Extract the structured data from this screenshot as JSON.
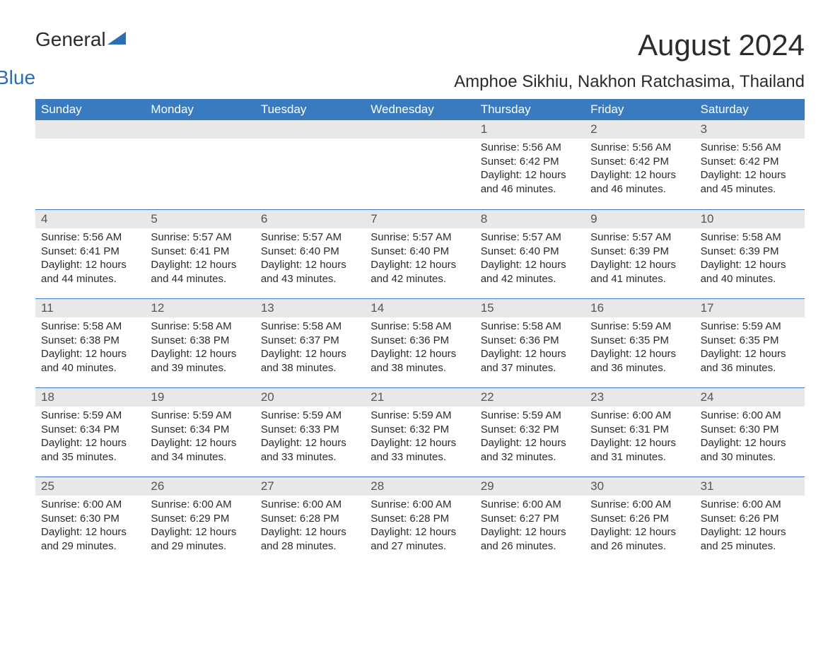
{
  "logo": {
    "text1": "General",
    "text2": "Blue"
  },
  "title": "August 2024",
  "location": "Amphoe Sikhiu, Nakhon Ratchasima, Thailand",
  "colors": {
    "header_bg": "#3a7bbf",
    "header_text": "#ffffff",
    "daynum_bg": "#e8e8e8",
    "body_text": "#2b2b2b",
    "accent": "#2f6db3"
  },
  "day_headers": [
    "Sunday",
    "Monday",
    "Tuesday",
    "Wednesday",
    "Thursday",
    "Friday",
    "Saturday"
  ],
  "weeks": [
    [
      null,
      null,
      null,
      null,
      {
        "n": "1",
        "sr": "5:56 AM",
        "ss": "6:42 PM",
        "dl": "12 hours and 46 minutes."
      },
      {
        "n": "2",
        "sr": "5:56 AM",
        "ss": "6:42 PM",
        "dl": "12 hours and 46 minutes."
      },
      {
        "n": "3",
        "sr": "5:56 AM",
        "ss": "6:42 PM",
        "dl": "12 hours and 45 minutes."
      }
    ],
    [
      {
        "n": "4",
        "sr": "5:56 AM",
        "ss": "6:41 PM",
        "dl": "12 hours and 44 minutes."
      },
      {
        "n": "5",
        "sr": "5:57 AM",
        "ss": "6:41 PM",
        "dl": "12 hours and 44 minutes."
      },
      {
        "n": "6",
        "sr": "5:57 AM",
        "ss": "6:40 PM",
        "dl": "12 hours and 43 minutes."
      },
      {
        "n": "7",
        "sr": "5:57 AM",
        "ss": "6:40 PM",
        "dl": "12 hours and 42 minutes."
      },
      {
        "n": "8",
        "sr": "5:57 AM",
        "ss": "6:40 PM",
        "dl": "12 hours and 42 minutes."
      },
      {
        "n": "9",
        "sr": "5:57 AM",
        "ss": "6:39 PM",
        "dl": "12 hours and 41 minutes."
      },
      {
        "n": "10",
        "sr": "5:58 AM",
        "ss": "6:39 PM",
        "dl": "12 hours and 40 minutes."
      }
    ],
    [
      {
        "n": "11",
        "sr": "5:58 AM",
        "ss": "6:38 PM",
        "dl": "12 hours and 40 minutes."
      },
      {
        "n": "12",
        "sr": "5:58 AM",
        "ss": "6:38 PM",
        "dl": "12 hours and 39 minutes."
      },
      {
        "n": "13",
        "sr": "5:58 AM",
        "ss": "6:37 PM",
        "dl": "12 hours and 38 minutes."
      },
      {
        "n": "14",
        "sr": "5:58 AM",
        "ss": "6:36 PM",
        "dl": "12 hours and 38 minutes."
      },
      {
        "n": "15",
        "sr": "5:58 AM",
        "ss": "6:36 PM",
        "dl": "12 hours and 37 minutes."
      },
      {
        "n": "16",
        "sr": "5:59 AM",
        "ss": "6:35 PM",
        "dl": "12 hours and 36 minutes."
      },
      {
        "n": "17",
        "sr": "5:59 AM",
        "ss": "6:35 PM",
        "dl": "12 hours and 36 minutes."
      }
    ],
    [
      {
        "n": "18",
        "sr": "5:59 AM",
        "ss": "6:34 PM",
        "dl": "12 hours and 35 minutes."
      },
      {
        "n": "19",
        "sr": "5:59 AM",
        "ss": "6:34 PM",
        "dl": "12 hours and 34 minutes."
      },
      {
        "n": "20",
        "sr": "5:59 AM",
        "ss": "6:33 PM",
        "dl": "12 hours and 33 minutes."
      },
      {
        "n": "21",
        "sr": "5:59 AM",
        "ss": "6:32 PM",
        "dl": "12 hours and 33 minutes."
      },
      {
        "n": "22",
        "sr": "5:59 AM",
        "ss": "6:32 PM",
        "dl": "12 hours and 32 minutes."
      },
      {
        "n": "23",
        "sr": "6:00 AM",
        "ss": "6:31 PM",
        "dl": "12 hours and 31 minutes."
      },
      {
        "n": "24",
        "sr": "6:00 AM",
        "ss": "6:30 PM",
        "dl": "12 hours and 30 minutes."
      }
    ],
    [
      {
        "n": "25",
        "sr": "6:00 AM",
        "ss": "6:30 PM",
        "dl": "12 hours and 29 minutes."
      },
      {
        "n": "26",
        "sr": "6:00 AM",
        "ss": "6:29 PM",
        "dl": "12 hours and 29 minutes."
      },
      {
        "n": "27",
        "sr": "6:00 AM",
        "ss": "6:28 PM",
        "dl": "12 hours and 28 minutes."
      },
      {
        "n": "28",
        "sr": "6:00 AM",
        "ss": "6:28 PM",
        "dl": "12 hours and 27 minutes."
      },
      {
        "n": "29",
        "sr": "6:00 AM",
        "ss": "6:27 PM",
        "dl": "12 hours and 26 minutes."
      },
      {
        "n": "30",
        "sr": "6:00 AM",
        "ss": "6:26 PM",
        "dl": "12 hours and 26 minutes."
      },
      {
        "n": "31",
        "sr": "6:00 AM",
        "ss": "6:26 PM",
        "dl": "12 hours and 25 minutes."
      }
    ]
  ],
  "labels": {
    "sunrise": "Sunrise:",
    "sunset": "Sunset:",
    "daylight": "Daylight:"
  }
}
